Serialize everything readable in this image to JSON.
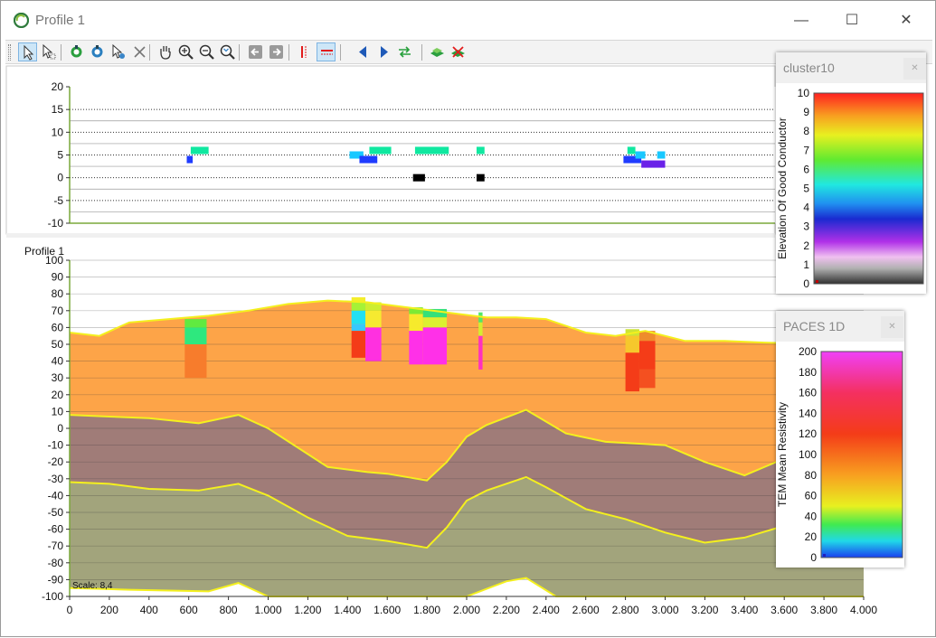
{
  "window": {
    "title": "Profile 1",
    "minimize_glyph": "—",
    "maximize_glyph": "☐",
    "close_glyph": "✕"
  },
  "toolbar": {
    "buttons": [
      {
        "icon": "select-arrow-icon",
        "pressed": true
      },
      {
        "icon": "select-multi-icon",
        "pressed": false
      },
      {
        "icon": "refresh-green-icon",
        "pressed": false
      },
      {
        "icon": "refresh-blue-icon",
        "pressed": false
      },
      {
        "icon": "pointer-settings-icon",
        "pressed": false
      },
      {
        "icon": "delete-x-icon",
        "pressed": false
      },
      {
        "icon": "pan-hand-icon",
        "pressed": false
      },
      {
        "icon": "zoom-in-icon",
        "pressed": false
      },
      {
        "icon": "zoom-out-icon",
        "pressed": false
      },
      {
        "icon": "zoom-extent-icon",
        "pressed": false
      },
      {
        "icon": "back-arrow-icon",
        "pressed": false
      },
      {
        "icon": "forward-arrow-icon",
        "pressed": false
      },
      {
        "icon": "vertical-lines-icon",
        "pressed": false
      },
      {
        "icon": "horizontal-lines-icon",
        "pressed": true
      },
      {
        "icon": "previous-triangle-icon",
        "pressed": false
      },
      {
        "icon": "next-triangle-icon",
        "pressed": false
      },
      {
        "icon": "swap-arrows-icon",
        "pressed": false
      },
      {
        "icon": "layer-green-icon",
        "pressed": false
      },
      {
        "icon": "layer-remove-icon",
        "pressed": false
      }
    ]
  },
  "top_plot": {
    "ylim": [
      -10,
      20
    ],
    "yticks": [
      "20",
      "15",
      "10",
      "5",
      "0",
      "-5",
      "-10"
    ],
    "grid_values": [
      15,
      12.5,
      10,
      7.5,
      5,
      2.5,
      0,
      -2.5,
      -5,
      -7.5
    ],
    "cluster_marks": [
      {
        "x0": 590,
        "x1": 620,
        "y0": 3.2,
        "y1": 4.8,
        "color": "#1f3cff"
      },
      {
        "x0": 610,
        "x1": 700,
        "y0": 5.2,
        "y1": 6.8,
        "color": "#10e8a0"
      },
      {
        "x0": 1410,
        "x1": 1480,
        "y0": 4.2,
        "y1": 5.8,
        "color": "#18c8ff"
      },
      {
        "x0": 1460,
        "x1": 1550,
        "y0": 3.2,
        "y1": 4.8,
        "color": "#1f3cff"
      },
      {
        "x0": 1510,
        "x1": 1620,
        "y0": 5.2,
        "y1": 6.8,
        "color": "#10e8a0"
      },
      {
        "x0": 1730,
        "x1": 1790,
        "y0": -0.8,
        "y1": 0.8,
        "color": "#000000"
      },
      {
        "x0": 1740,
        "x1": 1910,
        "y0": 5.2,
        "y1": 6.8,
        "color": "#10e8a0"
      },
      {
        "x0": 2050,
        "x1": 2090,
        "y0": 5.2,
        "y1": 6.8,
        "color": "#10e8a0"
      },
      {
        "x0": 2050,
        "x1": 2090,
        "y0": -0.8,
        "y1": 0.8,
        "color": "#000000"
      },
      {
        "x0": 2810,
        "x1": 2850,
        "y0": 5.2,
        "y1": 6.8,
        "color": "#10e8a0"
      },
      {
        "x0": 2790,
        "x1": 2880,
        "y0": 3.2,
        "y1": 4.8,
        "color": "#1f3cff"
      },
      {
        "x0": 2850,
        "x1": 2900,
        "y0": 4.2,
        "y1": 5.8,
        "color": "#18c8ff"
      },
      {
        "x0": 2880,
        "x1": 3000,
        "y0": 2.2,
        "y1": 3.8,
        "color": "#6a22e8"
      },
      {
        "x0": 2960,
        "x1": 3000,
        "y0": 4.2,
        "y1": 5.8,
        "color": "#18c8ff"
      }
    ]
  },
  "main_plot": {
    "label": "Profile 1",
    "scale_label": "Scale: 8,4",
    "xlim": [
      0,
      4000
    ],
    "ylim": [
      -100,
      100
    ],
    "yticks": [
      "100",
      "90",
      "80",
      "70",
      "60",
      "50",
      "40",
      "30",
      "20",
      "10",
      "0",
      "-10",
      "-20",
      "-30",
      "-40",
      "-50",
      "-60",
      "-70",
      "-80",
      "-90",
      "-100"
    ],
    "xticks": [
      "0",
      "200",
      "400",
      "600",
      "800",
      "1.000",
      "1.200",
      "1.400",
      "1.600",
      "1.800",
      "2.000",
      "2.200",
      "2.400",
      "2.600",
      "2.800",
      "3.000",
      "3.200",
      "3.400",
      "3.600",
      "3.800",
      "4.000"
    ],
    "surface": [
      [
        0,
        57
      ],
      [
        150,
        55
      ],
      [
        300,
        63
      ],
      [
        500,
        65
      ],
      [
        700,
        67
      ],
      [
        900,
        70
      ],
      [
        1100,
        74
      ],
      [
        1300,
        76
      ],
      [
        1500,
        75
      ],
      [
        1700,
        72
      ],
      [
        1900,
        69
      ],
      [
        2100,
        66
      ],
      [
        2250,
        66
      ],
      [
        2400,
        65
      ],
      [
        2600,
        57
      ],
      [
        2750,
        55
      ],
      [
        2900,
        58
      ],
      [
        3100,
        52
      ],
      [
        3300,
        52
      ],
      [
        3500,
        51
      ],
      [
        3800,
        50
      ],
      [
        4000,
        50
      ]
    ],
    "layer2_top": [
      [
        0,
        8
      ],
      [
        200,
        7
      ],
      [
        400,
        6
      ],
      [
        650,
        3
      ],
      [
        850,
        8
      ],
      [
        1000,
        0
      ],
      [
        1300,
        -23
      ],
      [
        1500,
        -26
      ],
      [
        1600,
        -27
      ],
      [
        1800,
        -31
      ],
      [
        1900,
        -20
      ],
      [
        2000,
        -5
      ],
      [
        2100,
        2
      ],
      [
        2300,
        11
      ],
      [
        2500,
        -3
      ],
      [
        2700,
        -8
      ],
      [
        3000,
        -10
      ],
      [
        3200,
        -20
      ],
      [
        3400,
        -28
      ],
      [
        3600,
        -18
      ],
      [
        4000,
        -15
      ]
    ],
    "layer3_top": [
      [
        0,
        -32
      ],
      [
        200,
        -33
      ],
      [
        400,
        -36
      ],
      [
        650,
        -37
      ],
      [
        850,
        -33
      ],
      [
        1000,
        -40
      ],
      [
        1200,
        -53
      ],
      [
        1400,
        -64
      ],
      [
        1600,
        -67
      ],
      [
        1800,
        -71
      ],
      [
        1900,
        -59
      ],
      [
        2000,
        -43
      ],
      [
        2100,
        -37
      ],
      [
        2300,
        -29
      ],
      [
        2400,
        -35
      ],
      [
        2600,
        -48
      ],
      [
        2800,
        -54
      ],
      [
        3000,
        -62
      ],
      [
        3200,
        -68
      ],
      [
        3400,
        -65
      ],
      [
        3600,
        -58
      ],
      [
        4000,
        -50
      ]
    ],
    "layer4_top": [
      [
        0,
        -95
      ],
      [
        300,
        -96
      ],
      [
        700,
        -97
      ],
      [
        850,
        -92
      ],
      [
        1000,
        -100
      ],
      [
        2000,
        -100
      ],
      [
        2200,
        -91
      ],
      [
        2300,
        -89
      ],
      [
        2450,
        -100
      ],
      [
        4000,
        -100
      ]
    ],
    "colors": {
      "layer1": "#fda448",
      "layer2": "#a07c78",
      "layer3": "#a2a47c",
      "boundary": "#f4f01e"
    },
    "soundings": [
      {
        "x0": 580,
        "x1": 690,
        "segs": [
          [
            65,
            60,
            "#60ea40"
          ],
          [
            60,
            50,
            "#2ee87e"
          ],
          [
            50,
            30,
            "#f77c2c"
          ]
        ]
      },
      {
        "x0": 1420,
        "x1": 1490,
        "segs": [
          [
            78,
            75,
            "#f4ee2c"
          ],
          [
            75,
            70,
            "#a6f236"
          ],
          [
            70,
            62,
            "#22e0f2"
          ],
          [
            62,
            58,
            "#38c8ff"
          ],
          [
            58,
            42,
            "#f43c18"
          ]
        ]
      },
      {
        "x0": 1490,
        "x1": 1570,
        "segs": [
          [
            75,
            70,
            "#ceee30"
          ],
          [
            70,
            60,
            "#f6ea30"
          ],
          [
            60,
            40,
            "#ff30e0"
          ]
        ]
      },
      {
        "x0": 1710,
        "x1": 1780,
        "segs": [
          [
            72,
            68,
            "#7cea34"
          ],
          [
            68,
            58,
            "#f6ea2c"
          ],
          [
            58,
            38,
            "#ff30e8"
          ]
        ]
      },
      {
        "x0": 1780,
        "x1": 1900,
        "segs": [
          [
            71,
            66,
            "#34e07a"
          ],
          [
            66,
            60,
            "#dcf030"
          ],
          [
            60,
            38,
            "#ff30e8"
          ]
        ]
      },
      {
        "x0": 2060,
        "x1": 2080,
        "segs": [
          [
            69,
            63,
            "#50e868"
          ],
          [
            63,
            55,
            "#d4ee30"
          ],
          [
            55,
            35,
            "#ff30c0"
          ]
        ]
      },
      {
        "x0": 2800,
        "x1": 2870,
        "segs": [
          [
            59,
            55,
            "#cce434"
          ],
          [
            55,
            45,
            "#f6c82c"
          ],
          [
            45,
            22,
            "#f43c18"
          ]
        ]
      },
      {
        "x0": 2870,
        "x1": 2950,
        "segs": [
          [
            58,
            52,
            "#ee8c2c"
          ],
          [
            52,
            35,
            "#f43c18"
          ],
          [
            35,
            24,
            "#f45020"
          ]
        ]
      }
    ]
  },
  "legend_cluster": {
    "title": "cluster10",
    "ylabel": "Elevation Of Good Conductor",
    "ticks": [
      "10",
      "9",
      "8",
      "7",
      "6",
      "5",
      "4",
      "3",
      "2",
      "1",
      "0"
    ]
  },
  "legend_paces": {
    "title": "PACES 1D",
    "ylabel": "TEM Mean Resistivity",
    "ticks": [
      "200",
      "180",
      "160",
      "140",
      "120",
      "100",
      "80",
      "60",
      "40",
      "20",
      "0"
    ]
  }
}
